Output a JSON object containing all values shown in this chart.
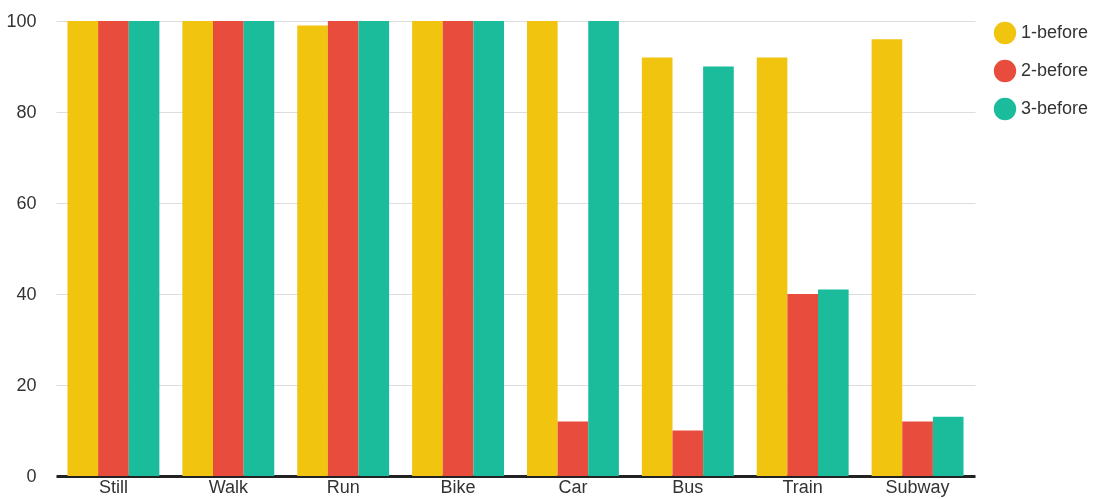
{
  "chart_data": {
    "type": "bar",
    "categories": [
      "Still",
      "Walk",
      "Run",
      "Bike",
      "Car",
      "Bus",
      "Train",
      "Subway"
    ],
    "series": [
      {
        "name": "1-before",
        "color": "#f1c40f",
        "values": [
          100,
          100,
          99,
          100,
          100,
          92,
          92,
          96
        ]
      },
      {
        "name": "2-before",
        "color": "#e74c3c",
        "values": [
          100,
          100,
          100,
          100,
          12,
          10,
          40,
          12
        ]
      },
      {
        "name": "3-before",
        "color": "#1abc9c",
        "values": [
          100,
          100,
          100,
          100,
          100,
          90,
          41,
          13
        ]
      }
    ],
    "ylim": [
      0,
      100
    ],
    "yticks": [
      0,
      20,
      40,
      60,
      80,
      100
    ],
    "grid": "y",
    "legend": "right"
  }
}
